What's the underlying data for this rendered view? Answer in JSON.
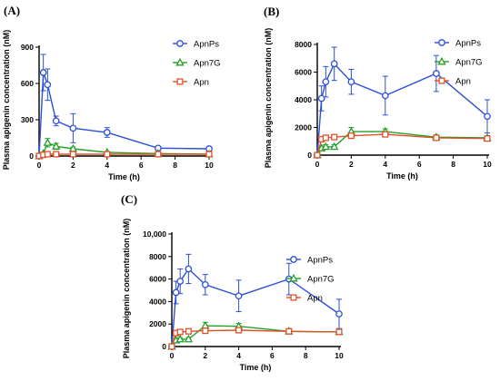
{
  "chart_data": [
    {
      "panel": "(A)",
      "type": "line",
      "xlabel": "Time (h)",
      "ylabel": "Plasma apigenin concentration (nM)",
      "xlim": [
        0,
        10
      ],
      "ylim": [
        0,
        900
      ],
      "xticks": [
        "0",
        "2",
        "4",
        "6",
        "8",
        "10"
      ],
      "yticks": [
        "0",
        "300",
        "600",
        "900"
      ],
      "legend": "top-right",
      "series": [
        {
          "name": "ApnPs",
          "color": "#2b4fd6",
          "marker": "circle",
          "x": [
            0,
            0.25,
            0.5,
            1,
            2,
            4,
            7,
            10
          ],
          "y": [
            0,
            690,
            590,
            290,
            230,
            195,
            65,
            60
          ],
          "err": [
            0,
            150,
            130,
            40,
            120,
            40,
            10,
            8
          ]
        },
        {
          "name": "Apn7G",
          "color": "#22a02a",
          "marker": "triangle",
          "x": [
            0,
            0.25,
            0.5,
            1,
            2,
            4,
            7,
            10
          ],
          "y": [
            0,
            20,
            110,
            80,
            60,
            30,
            20,
            15
          ],
          "err": [
            0,
            10,
            35,
            25,
            15,
            8,
            5,
            4
          ]
        },
        {
          "name": "Apn",
          "color": "#e05028",
          "marker": "square",
          "x": [
            0,
            0.25,
            0.5,
            1,
            2,
            4,
            7,
            10
          ],
          "y": [
            0,
            10,
            15,
            15,
            15,
            15,
            15,
            15
          ],
          "err": [
            0,
            3,
            3,
            3,
            3,
            3,
            3,
            3
          ]
        }
      ]
    },
    {
      "panel": "(B)",
      "type": "line",
      "xlabel": "Time (h)",
      "ylabel": "Plasma apigenin concentration (nM)",
      "xlim": [
        0,
        10
      ],
      "ylim": [
        0,
        8000
      ],
      "xticks": [
        "0",
        "2",
        "4",
        "6",
        "8",
        "10"
      ],
      "yticks": [
        "0",
        "2000",
        "4000",
        "6000",
        "8000"
      ],
      "legend": "top-right",
      "series": [
        {
          "name": "ApnPs",
          "color": "#2b4fd6",
          "marker": "circle",
          "x": [
            0,
            0.25,
            0.5,
            1,
            2,
            4,
            7,
            10
          ],
          "y": [
            0,
            4100,
            5300,
            6600,
            5300,
            4300,
            5900,
            2800
          ],
          "err": [
            0,
            900,
            1100,
            1200,
            900,
            1400,
            1300,
            1200
          ]
        },
        {
          "name": "Apn7G",
          "color": "#22a02a",
          "marker": "triangle",
          "x": [
            0,
            0.25,
            0.5,
            1,
            2,
            4,
            7,
            10
          ],
          "y": [
            0,
            500,
            600,
            600,
            1700,
            1700,
            1300,
            1250
          ],
          "err": [
            0,
            150,
            150,
            150,
            300,
            200,
            150,
            150
          ]
        },
        {
          "name": "Apn",
          "color": "#e05028",
          "marker": "square",
          "x": [
            0,
            0.25,
            0.5,
            1,
            2,
            4,
            7,
            10
          ],
          "y": [
            0,
            1150,
            1250,
            1300,
            1400,
            1500,
            1250,
            1200
          ],
          "err": [
            0,
            150,
            150,
            150,
            150,
            150,
            120,
            120
          ]
        }
      ]
    },
    {
      "panel": "(C)",
      "type": "line",
      "xlabel": "Time (h)",
      "ylabel": "Plasma apigenin concentration (nM)",
      "xlim": [
        0,
        10
      ],
      "ylim": [
        0,
        10000
      ],
      "xticks": [
        "0",
        "2",
        "4",
        "6",
        "8",
        "10"
      ],
      "yticks": [
        "0",
        "2000",
        "4000",
        "6000",
        "8000",
        "10,000"
      ],
      "legend": "top-right",
      "series": [
        {
          "name": "ApnPs",
          "color": "#2b4fd6",
          "marker": "circle",
          "x": [
            0,
            0.25,
            0.5,
            1,
            2,
            4,
            7,
            10
          ],
          "y": [
            0,
            4800,
            5800,
            6900,
            5500,
            4500,
            6000,
            2900
          ],
          "err": [
            0,
            1000,
            1100,
            1300,
            900,
            1400,
            1400,
            1300
          ]
        },
        {
          "name": "Apn7G",
          "color": "#22a02a",
          "marker": "triangle",
          "x": [
            0,
            0.25,
            0.5,
            1,
            2,
            4,
            7,
            10
          ],
          "y": [
            0,
            550,
            650,
            650,
            1850,
            1800,
            1350,
            1300
          ],
          "err": [
            0,
            150,
            150,
            150,
            300,
            250,
            150,
            150
          ]
        },
        {
          "name": "Apn",
          "color": "#e05028",
          "marker": "square",
          "x": [
            0,
            0.25,
            0.5,
            1,
            2,
            4,
            7,
            10
          ],
          "y": [
            0,
            1200,
            1300,
            1350,
            1400,
            1450,
            1350,
            1300
          ],
          "err": [
            0,
            150,
            150,
            150,
            150,
            150,
            120,
            120
          ]
        }
      ]
    }
  ]
}
